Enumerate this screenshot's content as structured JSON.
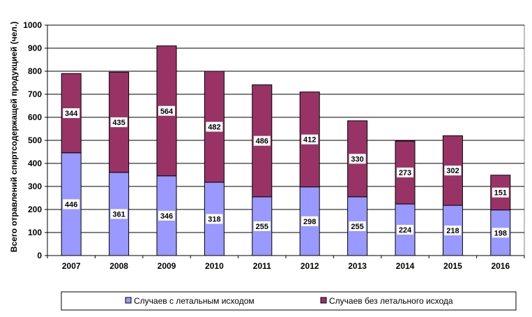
{
  "chart_data": {
    "type": "bar",
    "stacked": true,
    "categories": [
      "2007",
      "2008",
      "2009",
      "2010",
      "2011",
      "2012",
      "2013",
      "2014",
      "2015",
      "2016"
    ],
    "series": [
      {
        "name": "Случаев с летальным исходом",
        "color": "#9999FF",
        "values": [
          446,
          361,
          346,
          318,
          255,
          298,
          255,
          224,
          218,
          198
        ]
      },
      {
        "name": "Случаев без летального исхода",
        "color": "#993366",
        "values": [
          344,
          435,
          564,
          482,
          486,
          412,
          330,
          273,
          302,
          151
        ]
      }
    ],
    "ylabel": "Всего отравлений спиртсодержащей  продукцией (чел.)",
    "xlabel": "",
    "ylim": [
      0,
      1000
    ],
    "yticks": [
      0,
      100,
      200,
      300,
      400,
      500,
      600,
      700,
      800,
      900,
      1000
    ],
    "grid": true,
    "legend_position": "bottom",
    "plot_background": "#ffffff"
  }
}
